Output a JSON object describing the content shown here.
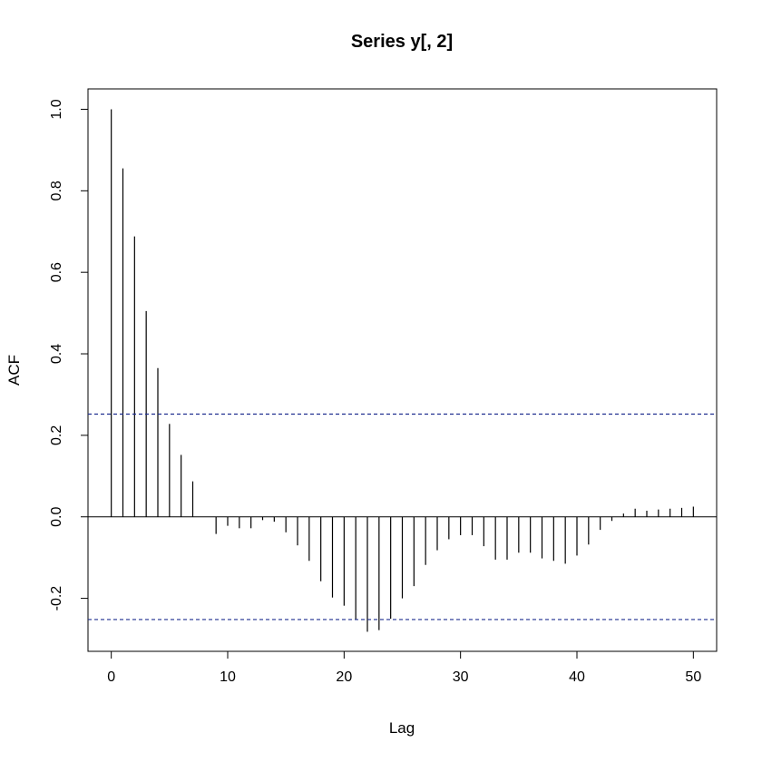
{
  "chart_data": {
    "type": "bar",
    "title": "Series  y[, 2]",
    "xlabel": "Lag",
    "ylabel": "ACF",
    "xlim": [
      -2,
      52
    ],
    "ylim": [
      -0.33,
      1.05
    ],
    "x_ticks": [
      0,
      10,
      20,
      30,
      40,
      50
    ],
    "y_ticks": [
      -0.2,
      0.0,
      0.2,
      0.4,
      0.6,
      0.8,
      1.0
    ],
    "y_tick_labels": [
      "-0.2",
      "0.0",
      "0.2",
      "0.4",
      "0.6",
      "0.8",
      "1.0"
    ],
    "confidence_band": [
      0.252,
      -0.252
    ],
    "grid": false,
    "lags": [
      0,
      1,
      2,
      3,
      4,
      5,
      6,
      7,
      8,
      9,
      10,
      11,
      12,
      13,
      14,
      15,
      16,
      17,
      18,
      19,
      20,
      21,
      22,
      23,
      24,
      25,
      26,
      27,
      28,
      29,
      30,
      31,
      32,
      33,
      34,
      35,
      36,
      37,
      38,
      39,
      40,
      41,
      42,
      43,
      44,
      45,
      46,
      47,
      48,
      49,
      50
    ],
    "values": [
      1.0,
      0.855,
      0.688,
      0.505,
      0.365,
      0.228,
      0.152,
      0.087,
      0.0,
      -0.042,
      -0.022,
      -0.028,
      -0.028,
      -0.008,
      -0.012,
      -0.038,
      -0.07,
      -0.108,
      -0.158,
      -0.198,
      -0.218,
      -0.252,
      -0.282,
      -0.278,
      -0.25,
      -0.2,
      -0.17,
      -0.118,
      -0.082,
      -0.055,
      -0.045,
      -0.045,
      -0.072,
      -0.105,
      -0.105,
      -0.088,
      -0.088,
      -0.102,
      -0.108,
      -0.115,
      -0.095,
      -0.068,
      -0.032,
      -0.01,
      0.008,
      0.02,
      0.015,
      0.018,
      0.02,
      0.022,
      0.025
    ]
  }
}
